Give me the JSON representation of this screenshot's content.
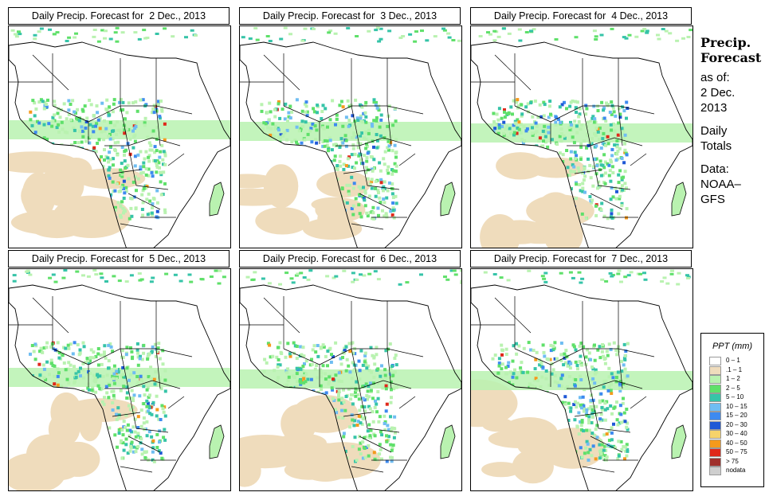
{
  "panels": [
    {
      "title": "Daily Precip. Forecast for  2 Dec., 2013"
    },
    {
      "title": "Daily Precip. Forecast for  3 Dec., 2013"
    },
    {
      "title": "Daily Precip. Forecast for  4 Dec., 2013"
    },
    {
      "title": "Daily Precip. Forecast for  5 Dec., 2013"
    },
    {
      "title": "Daily Precip. Forecast for  6 Dec., 2013"
    },
    {
      "title": "Daily Precip. Forecast for  7 Dec., 2013"
    }
  ],
  "sidebar": {
    "title_line1": "Precip.",
    "title_line2": "Forecast",
    "asof": "as of:",
    "date_line1": "2 Dec.",
    "date_line2": "2013",
    "totals_line1": "Daily",
    "totals_line2": "Totals",
    "data_line1": "Data:",
    "data_line2": "NOAA–",
    "data_line3": "GFS"
  },
  "legend": {
    "title": "PPT (mm)",
    "items": [
      {
        "label": "0 – 1",
        "color": "#ffffff"
      },
      {
        "label": ".1 – 1",
        "color": "#efdcbc"
      },
      {
        "label": "1 – 2",
        "color": "#b9f2b0"
      },
      {
        "label": "2 – 5",
        "color": "#5fe06a"
      },
      {
        "label": "5 – 10",
        "color": "#36c4a8"
      },
      {
        "label": "10 – 15",
        "color": "#6fbdf2"
      },
      {
        "label": "15 – 20",
        "color": "#3d8af0"
      },
      {
        "label": "20 – 30",
        "color": "#1f58d6"
      },
      {
        "label": "30 – 40",
        "color": "#f6d36b"
      },
      {
        "label": "40 – 50",
        "color": "#f59a1c"
      },
      {
        "label": "50 – 75",
        "color": "#e0281a"
      },
      {
        "label": "> 75",
        "color": "#a0302c"
      },
      {
        "label": "nodata",
        "color": "#cfcfcf"
      }
    ]
  }
}
